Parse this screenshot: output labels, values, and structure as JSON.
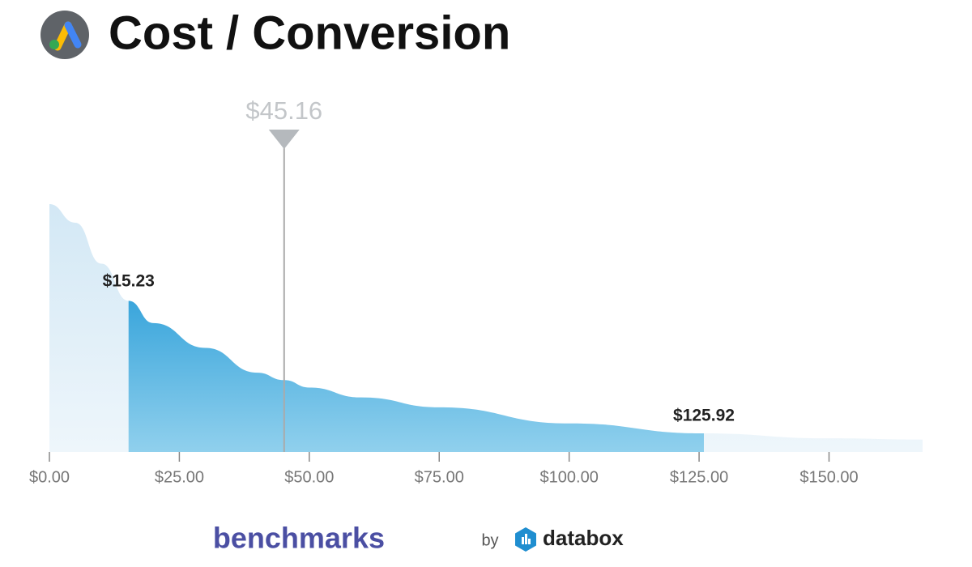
{
  "chart_data": {
    "type": "area",
    "title": "Cost / Conversion",
    "x": [
      0,
      5,
      10,
      15.23,
      20,
      30,
      40,
      45.16,
      50,
      60,
      75,
      100,
      125.92,
      150,
      168
    ],
    "values": [
      100,
      92.5,
      76,
      61,
      52,
      42,
      32,
      29,
      26,
      22,
      18,
      11.5,
      7.5,
      5.5,
      5
    ],
    "xlim": [
      0,
      168
    ],
    "ylim": [
      0,
      100
    ],
    "xticks": [
      {
        "value": 0,
        "label": "$0.00"
      },
      {
        "value": 25,
        "label": "$25.00"
      },
      {
        "value": 50,
        "label": "$50.00"
      },
      {
        "value": 75,
        "label": "$75.00"
      },
      {
        "value": 100,
        "label": "$100.00"
      },
      {
        "value": 125,
        "label": "$125.00"
      },
      {
        "value": 150,
        "label": "$150.00"
      }
    ],
    "median": {
      "value": 45.16,
      "label": "$45.16"
    },
    "lower": {
      "value": 15.23,
      "label": "$15.23"
    },
    "upper": {
      "value": 125.92,
      "label": "$125.92"
    }
  },
  "footer": {
    "brand": "benchmarks",
    "by": "by",
    "partner": "databox"
  }
}
